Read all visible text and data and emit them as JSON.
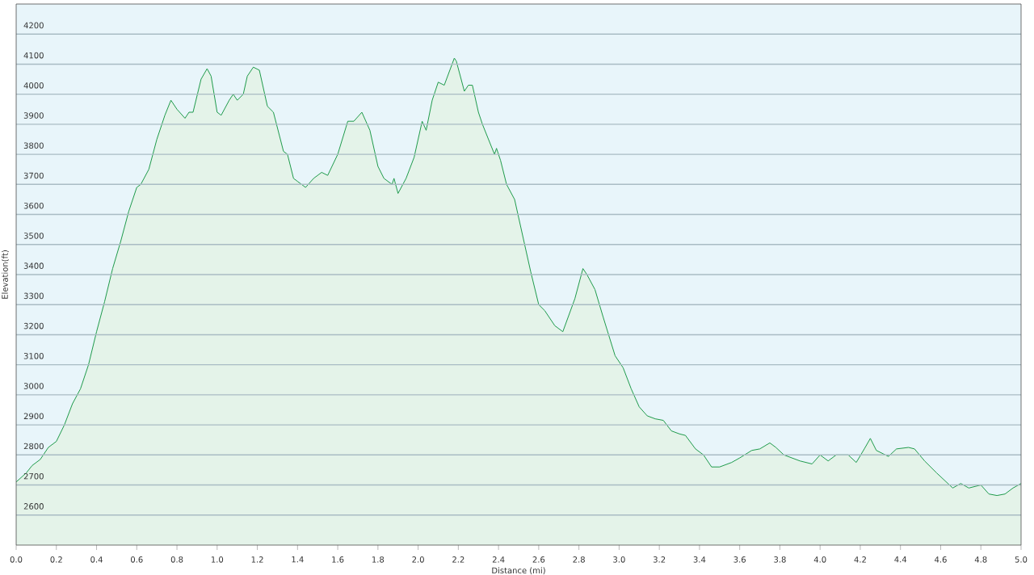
{
  "chart_data": {
    "type": "area",
    "xlabel": "Distance  (mi)",
    "ylabel": "Elevation(ft)",
    "color": "#1e9a4a",
    "grid": "y",
    "xlim": [
      0,
      5
    ],
    "ylim": [
      2500,
      4300
    ],
    "xticks": [
      {
        "value": 0,
        "label": "0.0"
      },
      0.2,
      0.4,
      0.6,
      0.8,
      {
        "value": 1,
        "label": "1.0"
      },
      1.2,
      1.4,
      1.6,
      1.8,
      {
        "value": 2,
        "label": "2.0"
      },
      2.2,
      2.4,
      2.6,
      2.8,
      {
        "value": 3,
        "label": "3.0"
      },
      3.2,
      3.4,
      3.6,
      3.8,
      {
        "value": 4,
        "label": "4.0"
      },
      4.2,
      4.4,
      4.6,
      4.8,
      {
        "value": 5,
        "label": "5.0"
      }
    ],
    "yticks": [
      2600,
      2700,
      2800,
      2900,
      3000,
      3100,
      3200,
      3300,
      3400,
      3500,
      3600,
      3700,
      3800,
      3900,
      4000,
      4100,
      4200
    ],
    "x": [
      0,
      0.05,
      0.08,
      0.12,
      0.16,
      0.2,
      0.24,
      0.28,
      0.32,
      0.36,
      0.4,
      0.44,
      0.48,
      0.52,
      0.56,
      0.6,
      0.62,
      0.66,
      0.7,
      0.74,
      0.77,
      0.8,
      0.84,
      0.86,
      0.88,
      0.92,
      0.95,
      0.97,
      1.0,
      1.02,
      1.06,
      1.08,
      1.1,
      1.13,
      1.15,
      1.18,
      1.21,
      1.25,
      1.28,
      1.33,
      1.35,
      1.38,
      1.4,
      1.44,
      1.48,
      1.52,
      1.55,
      1.6,
      1.65,
      1.68,
      1.72,
      1.76,
      1.8,
      1.83,
      1.87,
      1.88,
      1.9,
      1.94,
      1.98,
      2.02,
      2.04,
      2.07,
      2.1,
      2.13,
      2.18,
      2.19,
      2.23,
      2.25,
      2.27,
      2.3,
      2.32,
      2.38,
      2.39,
      2.41,
      2.44,
      2.48,
      2.52,
      2.56,
      2.6,
      2.63,
      2.68,
      2.72,
      2.78,
      2.82,
      2.84,
      2.88,
      2.92,
      2.98,
      3.02,
      3.06,
      3.1,
      3.14,
      3.18,
      3.22,
      3.26,
      3.3,
      3.33,
      3.38,
      3.42,
      3.46,
      3.5,
      3.56,
      3.6,
      3.66,
      3.7,
      3.75,
      3.78,
      3.82,
      3.9,
      3.96,
      4.0,
      4.04,
      4.08,
      4.14,
      4.18,
      4.22,
      4.25,
      4.28,
      4.34,
      4.38,
      4.44,
      4.47,
      4.52,
      4.58,
      4.66,
      4.7,
      4.74,
      4.8,
      4.84,
      4.88,
      4.92,
      4.96,
      5.0
    ],
    "values": [
      2710,
      2740,
      2765,
      2785,
      2825,
      2845,
      2900,
      2970,
      3020,
      3100,
      3210,
      3310,
      3420,
      3510,
      3610,
      3690,
      3700,
      3750,
      3850,
      3930,
      3980,
      3950,
      3920,
      3940,
      3940,
      4050,
      4085,
      4060,
      3940,
      3930,
      3980,
      4000,
      3980,
      4000,
      4060,
      4090,
      4080,
      3960,
      3940,
      3810,
      3800,
      3720,
      3710,
      3690,
      3720,
      3740,
      3730,
      3800,
      3910,
      3910,
      3940,
      3880,
      3760,
      3720,
      3700,
      3720,
      3670,
      3720,
      3790,
      3910,
      3880,
      3980,
      4040,
      4030,
      4120,
      4110,
      4010,
      4030,
      4030,
      3940,
      3900,
      3800,
      3820,
      3780,
      3700,
      3650,
      3530,
      3410,
      3300,
      3280,
      3230,
      3210,
      3320,
      3420,
      3400,
      3350,
      3260,
      3130,
      3090,
      3020,
      2960,
      2930,
      2920,
      2915,
      2880,
      2870,
      2865,
      2820,
      2800,
      2760,
      2760,
      2775,
      2790,
      2815,
      2820,
      2840,
      2825,
      2800,
      2780,
      2770,
      2800,
      2780,
      2800,
      2800,
      2775,
      2820,
      2855,
      2815,
      2795,
      2820,
      2825,
      2820,
      2780,
      2740,
      2690,
      2705,
      2690,
      2700,
      2670,
      2665,
      2670,
      2690,
      2705
    ]
  }
}
